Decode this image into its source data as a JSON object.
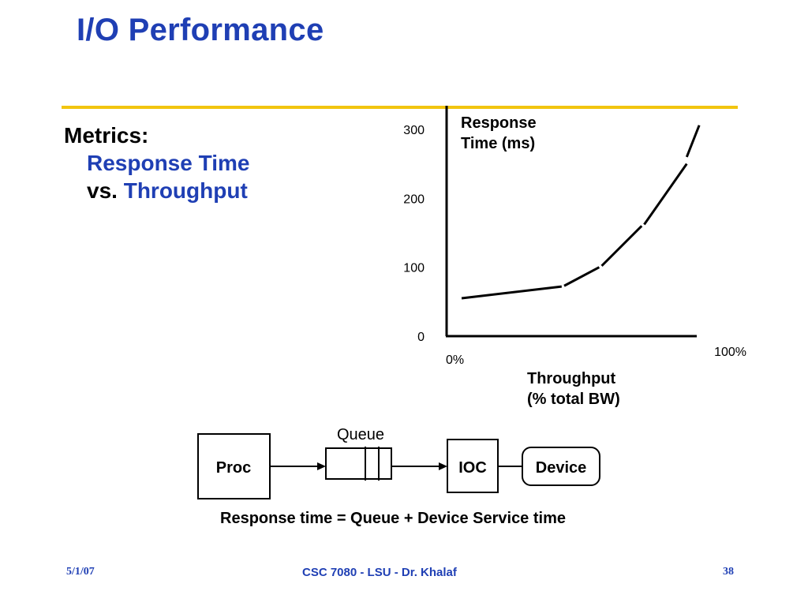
{
  "slide": {
    "title": "I/O Performance",
    "metrics_label": "Metrics:",
    "metric_line1": "Response Time",
    "metric_vs": "vs.",
    "metric_line2": "Throughput"
  },
  "chart_data": {
    "type": "line",
    "ylabel_line1": "Response",
    "ylabel_line2": "Time (ms)",
    "xlabel_line1": "Throughput",
    "xlabel_line2": "(% total BW)",
    "ylim": [
      0,
      300
    ],
    "xlim": [
      0,
      100
    ],
    "y_ticks": [
      "0",
      "100",
      "200",
      "300"
    ],
    "x_ticks": [
      "0%",
      "100%"
    ],
    "segments": [
      [
        [
          6,
          55
        ],
        [
          46,
          72
        ]
      ],
      [
        [
          47,
          73
        ],
        [
          61,
          100
        ]
      ],
      [
        [
          62,
          102
        ],
        [
          78,
          160
        ]
      ],
      [
        [
          79,
          162
        ],
        [
          96,
          250
        ]
      ],
      [
        [
          96,
          260
        ],
        [
          101,
          306
        ]
      ]
    ]
  },
  "diagram": {
    "queue_label": "Queue",
    "proc_label": "Proc",
    "ioc_label": "IOC",
    "device_label": "Device",
    "equation": "Response time = Queue + Device Service time"
  },
  "footer": {
    "date": "5/1/07",
    "course": "CSC 7080 - LSU - Dr. Khalaf",
    "page": "38"
  },
  "colors": {
    "title": "#1f3fb4",
    "rule": "#f2c50f",
    "text": "#000000"
  }
}
